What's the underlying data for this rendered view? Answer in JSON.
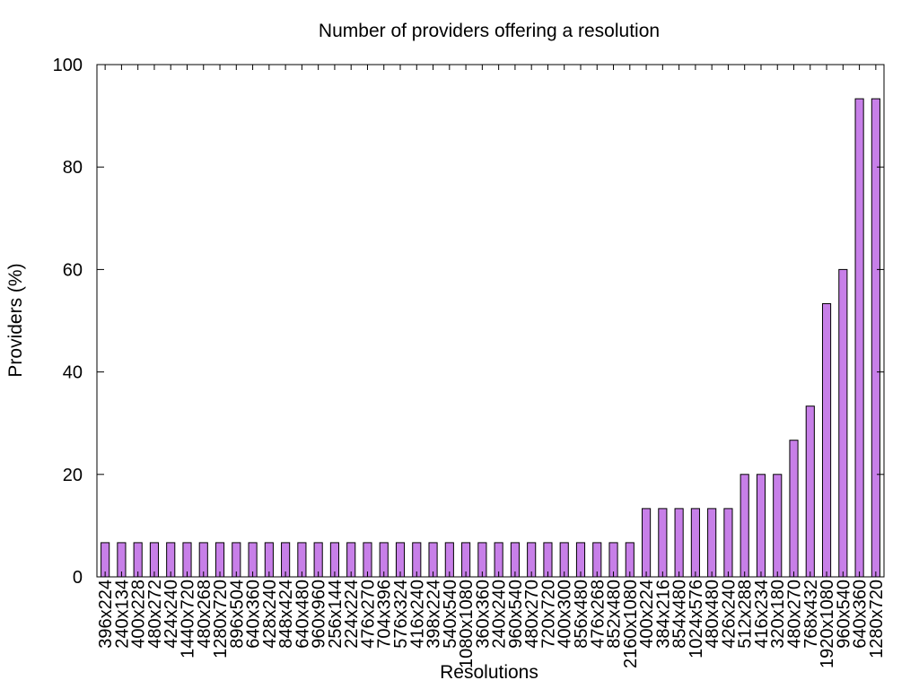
{
  "chart_data": {
    "type": "bar",
    "title": "Number of providers offering a resolution",
    "xlabel": "Resolutions",
    "ylabel": "Providers (%)",
    "ylim": [
      0,
      100
    ],
    "yticks": [
      0,
      20,
      40,
      60,
      80,
      100
    ],
    "grid": false,
    "bar_color": "#c77fe8",
    "bar_outline": "#000000",
    "categories": [
      "396x224",
      "240x134",
      "400x228",
      "480x272",
      "424x240",
      "1440x720",
      "480x268",
      "1280x720",
      "896x504",
      "640x360",
      "428x240",
      "848x424",
      "640x480",
      "960x960",
      "256x144",
      "224x224",
      "476x270",
      "704x396",
      "576x324",
      "416x240",
      "398x224",
      "540x540",
      "1080x1080",
      "360x360",
      "240x240",
      "960x540",
      "480x270",
      "720x720",
      "400x300",
      "856x480",
      "476x268",
      "852x480",
      "2160x1080",
      "400x224",
      "384x216",
      "854x480",
      "1024x576",
      "480x480",
      "426x240",
      "512x288",
      "416x234",
      "320x180",
      "480x270",
      "768x432",
      "1920x1080",
      "960x540",
      "640x360",
      "1280x720"
    ],
    "values": [
      6.67,
      6.67,
      6.67,
      6.67,
      6.67,
      6.67,
      6.67,
      6.67,
      6.67,
      6.67,
      6.67,
      6.67,
      6.67,
      6.67,
      6.67,
      6.67,
      6.67,
      6.67,
      6.67,
      6.67,
      6.67,
      6.67,
      6.67,
      6.67,
      6.67,
      6.67,
      6.67,
      6.67,
      6.67,
      6.67,
      6.67,
      6.67,
      6.67,
      13.33,
      13.33,
      13.33,
      13.33,
      13.33,
      13.33,
      20,
      20,
      20,
      26.67,
      33.33,
      53.33,
      60,
      93.33,
      93.33
    ]
  }
}
